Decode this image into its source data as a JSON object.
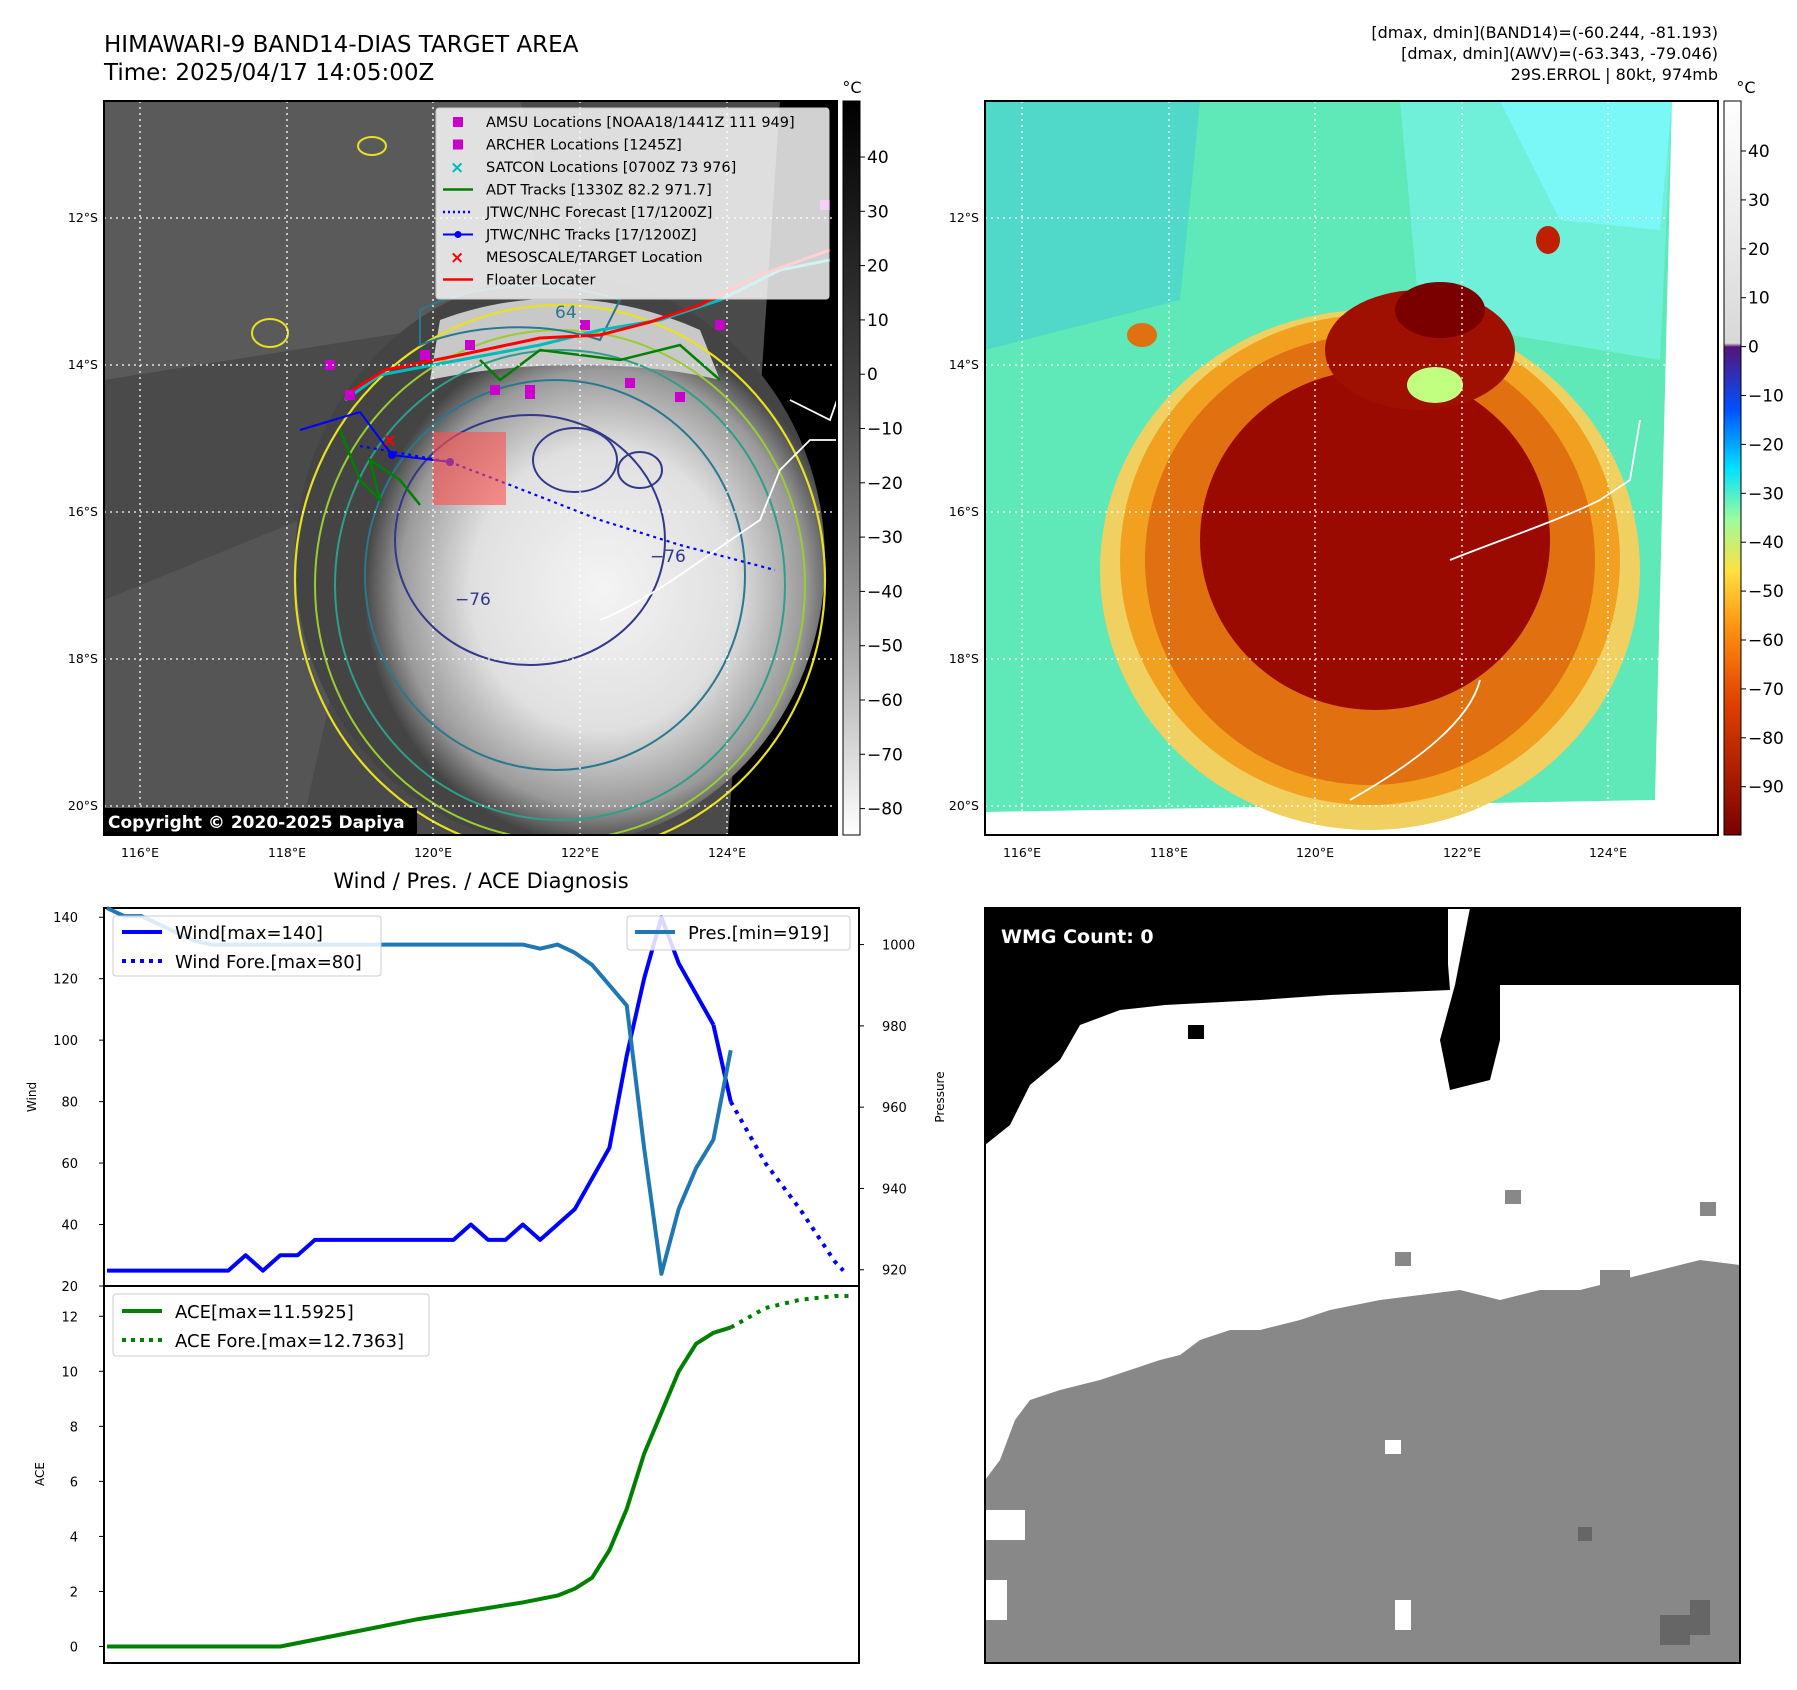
{
  "header": {
    "title_line1": "HIMAWARI-9 BAND14-DIAS TARGET AREA",
    "title_line2": "Time: 2025/04/17 14:05:00Z",
    "info_line1": "[dmax, dmin](BAND14)=(-60.244, -81.193)",
    "info_line2": "[dmax, dmin](AWV)=(-63.343, -79.046)",
    "info_line3": "29S.ERROL | 80kt, 974mb"
  },
  "map_axes": {
    "lon_ticks": [
      "116°E",
      "118°E",
      "120°E",
      "122°E",
      "124°E"
    ],
    "lat_ticks": [
      "12°S",
      "14°S",
      "16°S",
      "18°S",
      "20°S"
    ]
  },
  "colorbar_left": {
    "unit": "°C",
    "ticks": [
      "40",
      "30",
      "20",
      "10",
      "0",
      "−10",
      "−20",
      "−30",
      "−40",
      "−50",
      "−60",
      "−70",
      "−80"
    ]
  },
  "colorbar_right": {
    "unit": "°C",
    "ticks": [
      "40",
      "30",
      "20",
      "10",
      "0",
      "−10",
      "−20",
      "−30",
      "−40",
      "−50",
      "−60",
      "−70",
      "−80",
      "−90"
    ]
  },
  "legend_map": [
    {
      "label": "AMSU Locations [NOAA18/1441Z 111 949]",
      "marker": "square",
      "color": "#cc00cc"
    },
    {
      "label": "ARCHER Locations [1245Z]",
      "marker": "square",
      "color": "#cc00cc"
    },
    {
      "label": "SATCON Locations [0700Z 73 976]",
      "marker": "x",
      "color": "#00bbbb"
    },
    {
      "label": "ADT Tracks [1330Z 82.2 971.7]",
      "marker": "line",
      "color": "#008000"
    },
    {
      "label": "JTWC/NHC Forecast [17/1200Z]",
      "marker": "dotted",
      "color": "#0000ff"
    },
    {
      "label": "JTWC/NHC Tracks [17/1200Z]",
      "marker": "line-dot",
      "color": "#0000ff"
    },
    {
      "label": "MESOSCALE/TARGET Location",
      "marker": "x",
      "color": "#ff0000"
    },
    {
      "label": "Floater Locater",
      "marker": "line",
      "color": "#ff0000"
    }
  ],
  "map_annotations": {
    "contour_64": "64",
    "contour_76a": "−76",
    "contour_76b": "−76"
  },
  "copyright": "Copyright © 2020-2025 Dapiya",
  "wmg": {
    "label": "WMG Count: 0"
  },
  "chart_data": [
    {
      "type": "line",
      "title": "Wind / Pres. / ACE Diagnosis",
      "ylabel": "Wind",
      "ylabel_right": "Pressure",
      "ylim": [
        20,
        143
      ],
      "ylim_right": [
        916,
        1009
      ],
      "yticks": [
        20,
        40,
        60,
        80,
        100,
        120,
        140
      ],
      "yticks_right": [
        920,
        940,
        960,
        980,
        1000
      ],
      "legend_left": "Wind[max=140]",
      "legend_left2": "Wind Fore.[max=80]",
      "legend_right": "Pres.[min=919]",
      "series": [
        {
          "name": "Wind[max=140]",
          "color": "#0000ff",
          "style": "solid",
          "x": [
            0,
            1,
            2,
            3,
            4,
            5,
            6,
            7,
            8,
            9,
            10,
            11,
            12,
            13,
            14,
            15,
            16,
            17,
            18,
            19,
            20,
            21,
            22,
            23,
            24,
            25,
            26,
            27,
            28,
            29,
            30,
            31,
            32,
            33,
            34,
            35
          ],
          "values": [
            25,
            25,
            25,
            25,
            25,
            25,
            25,
            25,
            30,
            25,
            30,
            30,
            35,
            35,
            35,
            35,
            35,
            35,
            35,
            35,
            35,
            40,
            35,
            35,
            40,
            35,
            40,
            45,
            55,
            65,
            95,
            120,
            140,
            125,
            115,
            105
          ]
        },
        {
          "name": "Wind[max=140] end",
          "color": "#0000ff",
          "style": "solid",
          "x": [
            35,
            36
          ],
          "values": [
            105,
            80
          ]
        },
        {
          "name": "Wind Fore.[max=80]",
          "color": "#0000ff",
          "style": "dotted",
          "x": [
            36,
            38,
            40,
            42,
            42.5
          ],
          "values": [
            80,
            60,
            45,
            28,
            25
          ]
        },
        {
          "name": "Pres.[min=919]",
          "color": "#1f77b4",
          "style": "solid",
          "axis": "right",
          "x": [
            0,
            1,
            2,
            3,
            4,
            5,
            6,
            7,
            8,
            9,
            10,
            11,
            12,
            13,
            14,
            15,
            16,
            17,
            18,
            19,
            20,
            21,
            22,
            23,
            24,
            25,
            26,
            27,
            28,
            29,
            30,
            31,
            32,
            33,
            34,
            35,
            36
          ],
          "values": [
            1009,
            1007,
            1007,
            1005,
            1003,
            1001,
            1000,
            1000,
            1000,
            1000,
            1000,
            1000,
            1000,
            1000,
            1000,
            1000,
            1000,
            1000,
            1000,
            1000,
            1000,
            1000,
            1000,
            1000,
            1000,
            999,
            1000,
            998,
            995,
            990,
            985,
            950,
            919,
            935,
            945,
            952,
            974
          ]
        }
      ]
    },
    {
      "type": "line",
      "ylabel": "ACE",
      "ylim": [
        -0.6,
        13.1
      ],
      "yticks": [
        0,
        2,
        4,
        6,
        8,
        10,
        12
      ],
      "series": [
        {
          "name": "ACE[max=11.5925]",
          "color": "#008000",
          "style": "solid",
          "x": [
            0,
            10,
            12,
            14,
            16,
            18,
            20,
            22,
            24,
            26,
            27,
            28,
            29,
            30,
            31,
            32,
            33,
            34,
            35,
            36
          ],
          "values": [
            0,
            0,
            0.25,
            0.5,
            0.75,
            1.0,
            1.2,
            1.4,
            1.6,
            1.85,
            2.1,
            2.5,
            3.5,
            5.0,
            7.0,
            8.5,
            10.0,
            11.0,
            11.4,
            11.5925
          ]
        },
        {
          "name": "ACE Fore.[max=12.7363]",
          "color": "#008000",
          "style": "dotted",
          "x": [
            36,
            38,
            40,
            42,
            43
          ],
          "values": [
            11.5925,
            12.3,
            12.6,
            12.7363,
            12.7363
          ]
        }
      ]
    }
  ]
}
